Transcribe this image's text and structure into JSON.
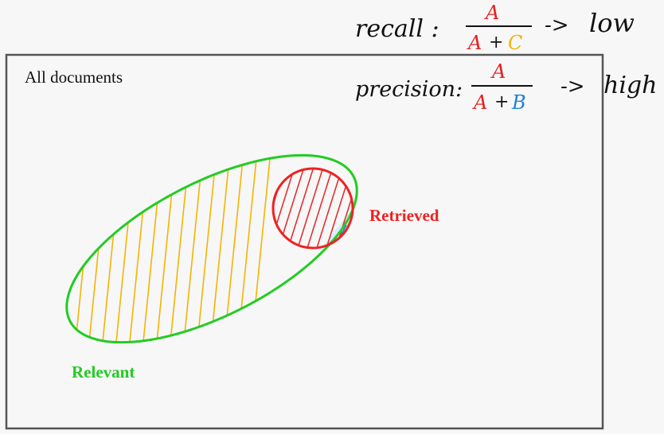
{
  "diagram": {
    "box_label": "All documents",
    "relevant_label": "Relevant",
    "retrieved_label": "Retrieved",
    "colors": {
      "box": "#555555",
      "relevant": "#22cc22",
      "retrieved": "#ee2222",
      "hatch_relevant": "#f3b400",
      "hatch_retrieved": "#e53030",
      "hatch_false_positive": "#1e7fd8",
      "ink": "#111111"
    }
  },
  "annotations": {
    "recall": {
      "label": "recall :",
      "numerator": "A",
      "denominator_left": "A",
      "plus": "+",
      "denominator_right": "C",
      "arrow": "->",
      "result": "low"
    },
    "precision": {
      "label": "precision:",
      "numerator": "A",
      "denominator_left": "A",
      "plus": "+",
      "denominator_right": "B",
      "arrow": "->",
      "result": "high"
    }
  }
}
